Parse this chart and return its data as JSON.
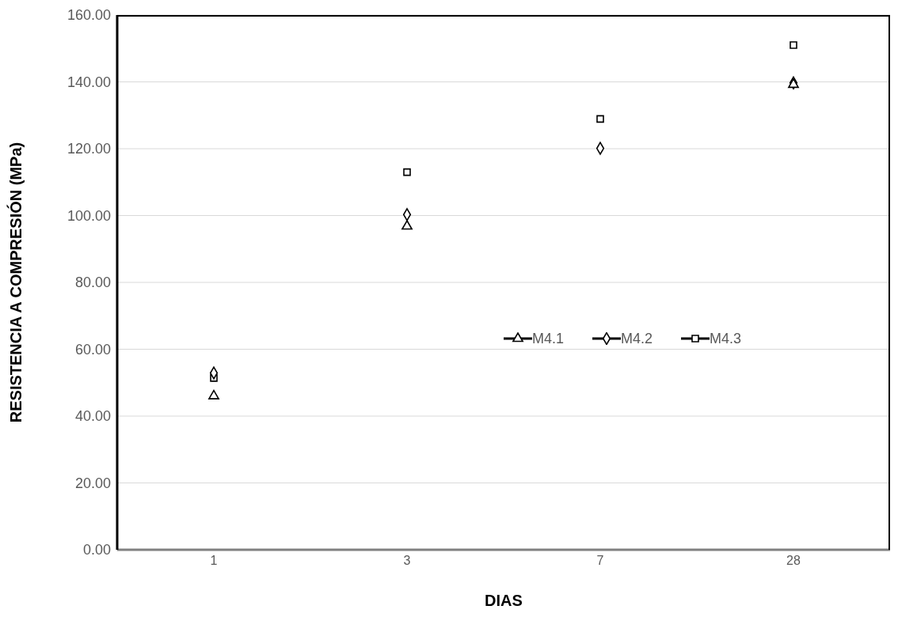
{
  "chart_data": {
    "type": "scatter",
    "xlabel": "DIAS",
    "ylabel": "RESISTENCIA A COMPRESIÓN (MPa)",
    "categories": [
      "1",
      "3",
      "7",
      "28"
    ],
    "series": [
      {
        "name": "M4.1",
        "color": "#000000",
        "marker": "triangle",
        "values": [
          46.0,
          96.8,
          null,
          139.2
        ]
      },
      {
        "name": "M4.2",
        "color": "#000000",
        "marker": "diamond",
        "values": [
          52.9,
          100.3,
          120.1,
          139.7
        ]
      },
      {
        "name": "M4.3",
        "color": "#000000",
        "marker": "square",
        "values": [
          51.4,
          113.0,
          128.9,
          151.0
        ]
      }
    ],
    "ylim": [
      0,
      160
    ],
    "yticks": [
      {
        "value": 0,
        "label": "0.00"
      },
      {
        "value": 20,
        "label": "20.00"
      },
      {
        "value": 40,
        "label": "40.00"
      },
      {
        "value": 60,
        "label": "60.00"
      },
      {
        "value": 80,
        "label": "80.00"
      },
      {
        "value": 100,
        "label": "100.00"
      },
      {
        "value": 120,
        "label": "120.00"
      },
      {
        "value": 140,
        "label": "140.00"
      },
      {
        "value": 160,
        "label": "160.00"
      }
    ],
    "grid": "y",
    "legend": "right"
  }
}
